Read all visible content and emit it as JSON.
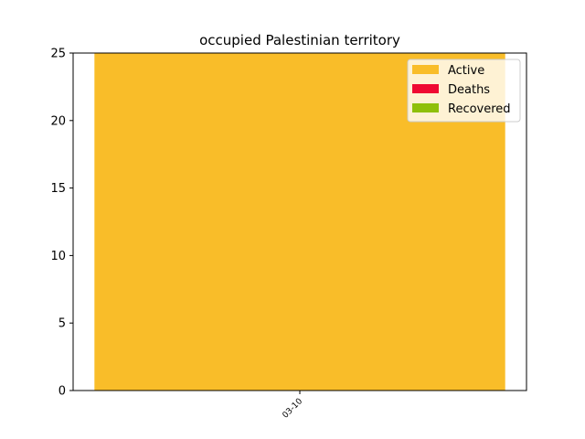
{
  "chart_data": {
    "type": "bar",
    "stacked": true,
    "title": "occupied Palestinian territory",
    "xlabel": "",
    "ylabel": "",
    "categories": [
      "03-10"
    ],
    "series": [
      {
        "name": "Active",
        "values": [
          25
        ],
        "color": "#f9bd29"
      },
      {
        "name": "Deaths",
        "values": [
          0
        ],
        "color": "#ef0a32"
      },
      {
        "name": "Recovered",
        "values": [
          0
        ],
        "color": "#8fc00a"
      }
    ],
    "ylim": [
      0,
      25
    ],
    "yticks": [
      0,
      5,
      10,
      15,
      20,
      25
    ],
    "grid": false,
    "legend_position": "top-right"
  }
}
